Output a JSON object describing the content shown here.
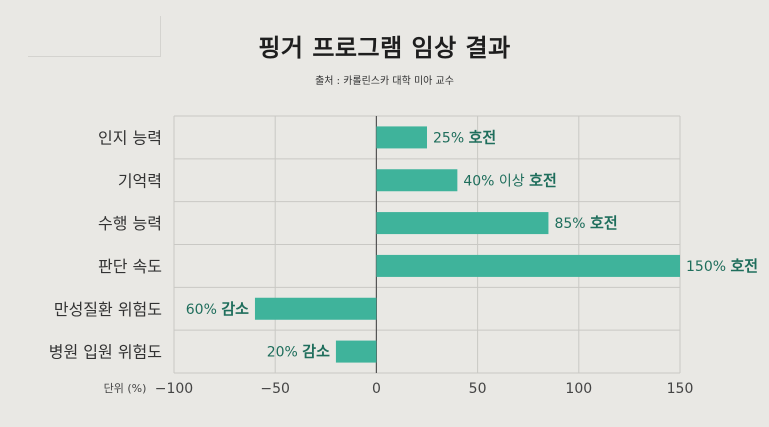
{
  "header": {
    "title": "핑거 프로그램 임상 결과",
    "source": "출처 : 카롤린스카 대학 미아 교수"
  },
  "chart_data": {
    "type": "bar",
    "orientation": "horizontal",
    "title": "핑거 프로그램 임상 결과",
    "subtitle": "출처 : 카롤린스카 대학 미아 교수",
    "xlabel": "단위 (%)",
    "categories": [
      "인지 능력",
      "기억력",
      "수행 능력",
      "판단 속도",
      "만성질환 위험도",
      "병원 입원 위험도"
    ],
    "values": [
      25,
      40,
      85,
      150,
      -60,
      -20
    ],
    "data_labels": [
      {
        "value": "25%",
        "word": "호전"
      },
      {
        "value": "40% 이상",
        "word": "호전"
      },
      {
        "value": "85%",
        "word": "호전"
      },
      {
        "value": "150%",
        "word": "호전"
      },
      {
        "value": "60%",
        "word": "감소"
      },
      {
        "value": "20%",
        "word": "감소"
      }
    ],
    "xlim": [
      -100,
      150
    ],
    "xticks": [
      -100,
      -50,
      0,
      50,
      100,
      150
    ],
    "tick_labels": [
      "−100",
      "−50",
      "0",
      "50",
      "100",
      "150"
    ],
    "grid": true,
    "colors": {
      "bar": "#3fb39b",
      "label": "#1f6e5c",
      "grid": "#c9c8c4",
      "axis": "#555555"
    }
  }
}
